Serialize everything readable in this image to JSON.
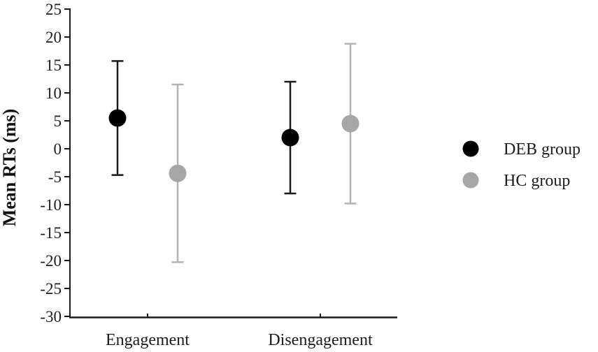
{
  "figure": {
    "background": "#ffffff",
    "axis_color": "#1a1a1a"
  },
  "chart_data": {
    "type": "scatter",
    "subtype": "grouped-means-with-error-bars",
    "title": "",
    "xlabel": "",
    "ylabel": "Mean RTs (ms)",
    "ylim": [
      -30,
      25
    ],
    "ytick_step": 5,
    "grid": false,
    "legend_position": "right-middle",
    "categories": [
      "Engagement",
      "Disengagement"
    ],
    "series": [
      {
        "name": "DEB group",
        "color": "#000000",
        "line_color": "#1a1a1a",
        "points": [
          {
            "category": "Engagement",
            "mean": 5.5,
            "ci_low": -4.7,
            "ci_high": 15.7
          },
          {
            "category": "Disengagement",
            "mean": 2.0,
            "ci_low": -8.0,
            "ci_high": 12.0
          }
        ]
      },
      {
        "name": "HC group",
        "color": "#a6a6a6",
        "line_color": "#b3b3b3",
        "points": [
          {
            "category": "Engagement",
            "mean": -4.4,
            "ci_low": -20.3,
            "ci_high": 11.5
          },
          {
            "category": "Disengagement",
            "mean": 4.5,
            "ci_low": -9.8,
            "ci_high": 18.8
          }
        ]
      }
    ]
  }
}
